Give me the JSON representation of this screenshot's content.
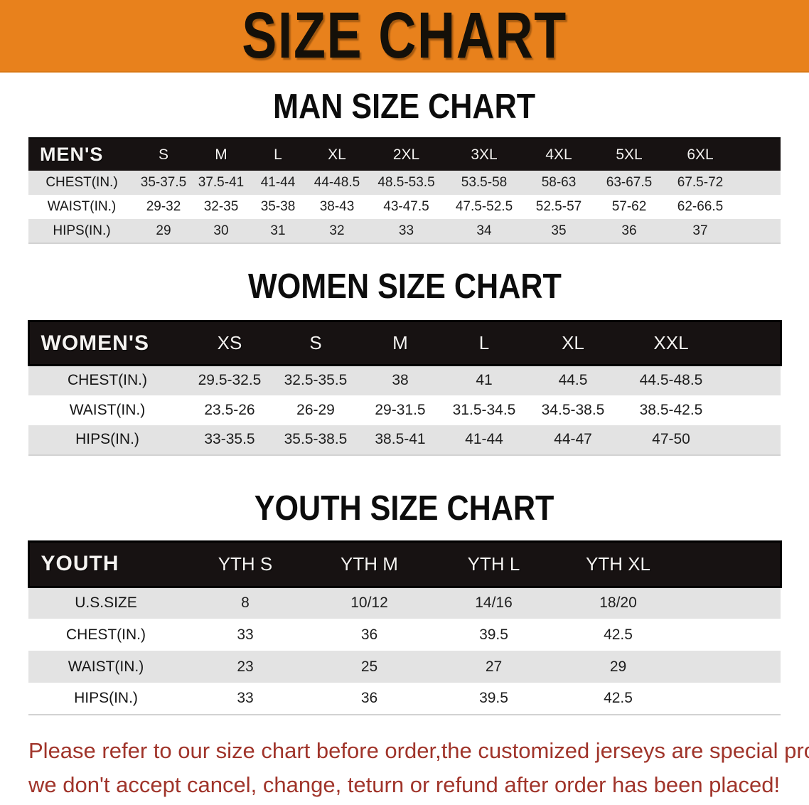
{
  "banner": {
    "title": "SIZE CHART",
    "bg_color": "#E8811C",
    "text_color": "#141009"
  },
  "sections": {
    "men": {
      "heading": "MAN SIZE CHART",
      "table": {
        "header_label": "MEN'S",
        "columns": [
          "S",
          "M",
          "L",
          "XL",
          "2XL",
          "3XL",
          "4XL",
          "5XL",
          "6XL"
        ],
        "rows": [
          {
            "label": "CHEST(IN.)",
            "values": [
              "35-37.5",
              "37.5-41",
              "41-44",
              "44-48.5",
              "48.5-53.5",
              "53.5-58",
              "58-63",
              "63-67.5",
              "67.5-72"
            ]
          },
          {
            "label": "WAIST(IN.)",
            "values": [
              "29-32",
              "32-35",
              "35-38",
              "38-43",
              "43-47.5",
              "47.5-52.5",
              "52.5-57",
              "57-62",
              "62-66.5"
            ]
          },
          {
            "label": "HIPS(IN.)",
            "values": [
              "29",
              "30",
              "31",
              "32",
              "33",
              "34",
              "35",
              "36",
              "37"
            ]
          }
        ]
      }
    },
    "women": {
      "heading": "WOMEN SIZE CHART",
      "table": {
        "header_label": "WOMEN'S",
        "columns": [
          "XS",
          "S",
          "M",
          "L",
          "XL",
          "XXL"
        ],
        "rows": [
          {
            "label": "CHEST(IN.)",
            "values": [
              "29.5-32.5",
              "32.5-35.5",
              "38",
              "41",
              "44.5",
              "44.5-48.5"
            ]
          },
          {
            "label": "WAIST(IN.)",
            "values": [
              "23.5-26",
              "26-29",
              "29-31.5",
              "31.5-34.5",
              "34.5-38.5",
              "38.5-42.5"
            ]
          },
          {
            "label": "HIPS(IN.)",
            "values": [
              "33-35.5",
              "35.5-38.5",
              "38.5-41",
              "41-44",
              "44-47",
              "47-50"
            ]
          }
        ]
      }
    },
    "youth": {
      "heading": "YOUTH SIZE CHART",
      "table": {
        "header_label": "YOUTH",
        "columns": [
          "YTH S",
          "YTH M",
          "YTH L",
          "YTH XL"
        ],
        "rows": [
          {
            "label": "U.S.SIZE",
            "values": [
              "8",
              "10/12",
              "14/16",
              "18/20"
            ]
          },
          {
            "label": "CHEST(IN.)",
            "values": [
              "33",
              "36",
              "39.5",
              "42.5"
            ]
          },
          {
            "label": "WAIST(IN.)",
            "values": [
              "23",
              "25",
              "27",
              "29"
            ]
          },
          {
            "label": "HIPS(IN.)",
            "values": [
              "33",
              "36",
              "39.5",
              "42.5"
            ]
          }
        ]
      }
    }
  },
  "disclaimer": {
    "line1": "Please refer to our size chart before order,the customized jerseys are special products,",
    "line2": "we don't accept cancel, change, teturn or refund after order has been placed!",
    "color": "#A0342A"
  }
}
